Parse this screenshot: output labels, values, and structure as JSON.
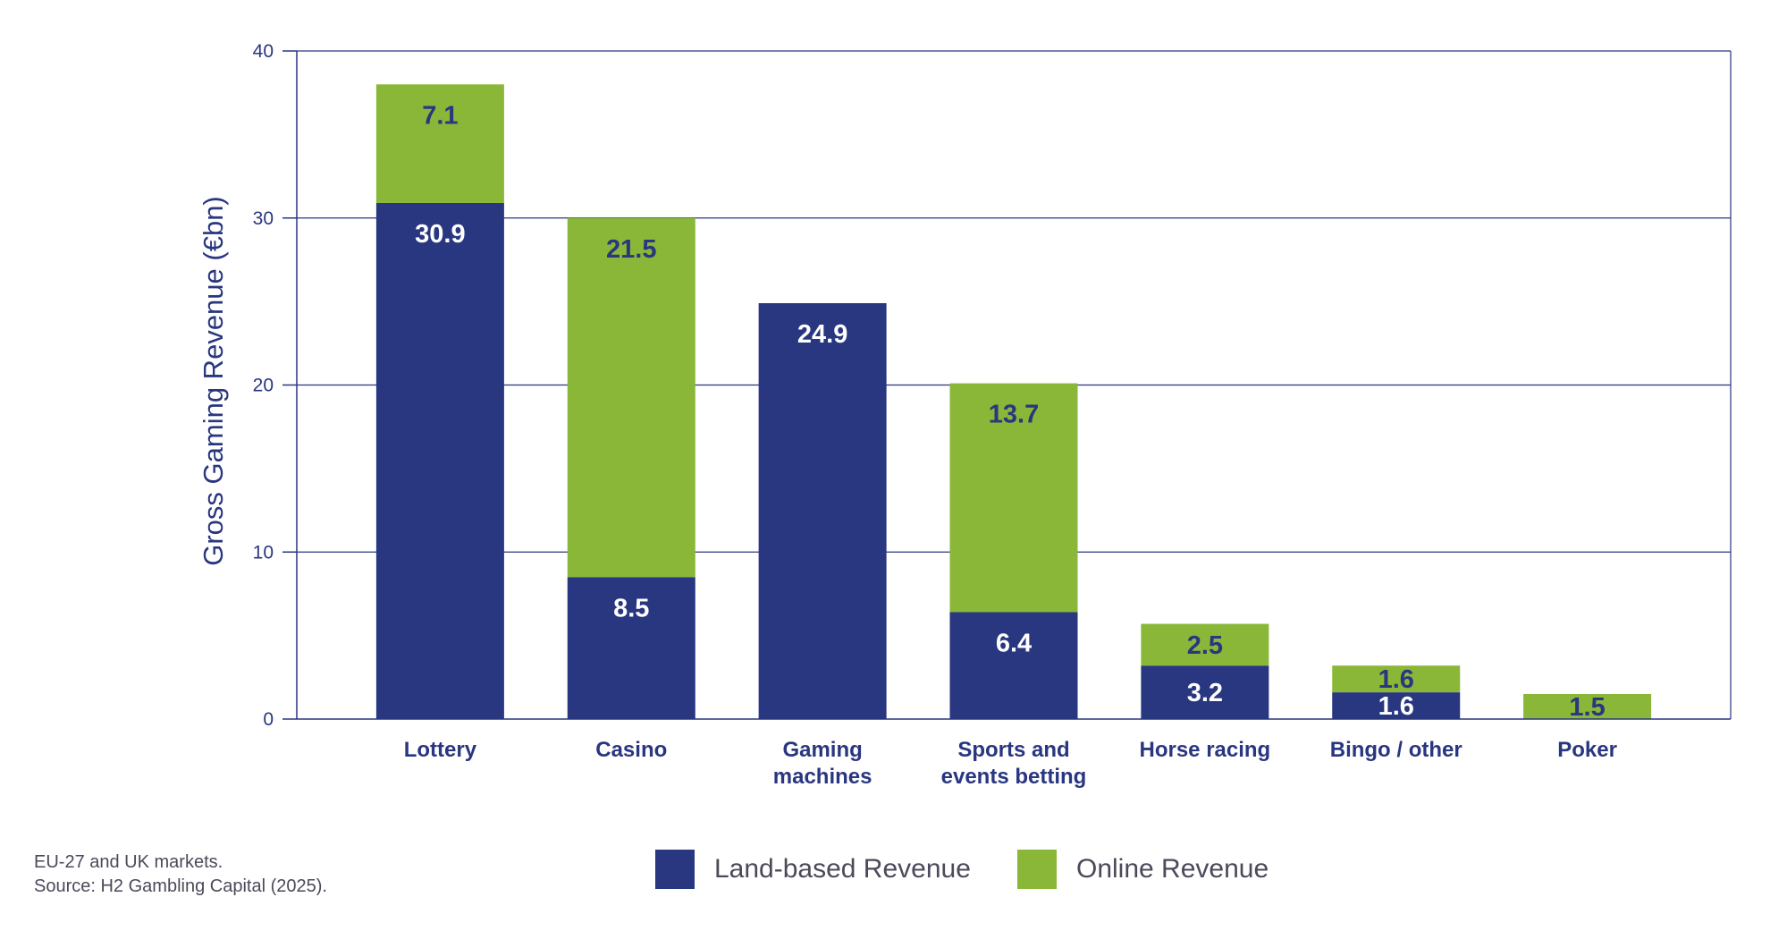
{
  "colors": {
    "land_based": "#293680",
    "online": "#8ab737",
    "axis": "#293680",
    "grid": "#293680"
  },
  "chart_data": {
    "type": "bar",
    "stacked": true,
    "categories": [
      [
        "Lottery"
      ],
      [
        "Casino"
      ],
      [
        "Gaming",
        "machines"
      ],
      [
        "Sports and",
        "events betting"
      ],
      [
        "Horse racing"
      ],
      [
        "Bingo / other"
      ],
      [
        "Poker"
      ]
    ],
    "series": [
      {
        "name": "Land-based Revenue",
        "values": [
          30.9,
          8.5,
          24.9,
          6.4,
          3.2,
          1.6,
          0
        ],
        "labels": [
          "30.9",
          "8.5",
          "24.9",
          "6.4",
          "3.2",
          "1.6",
          ""
        ]
      },
      {
        "name": "Online Revenue",
        "values": [
          7.1,
          21.5,
          0,
          13.7,
          2.5,
          1.6,
          1.5
        ],
        "labels": [
          "7.1",
          "21.5",
          "",
          "13.7",
          "2.5",
          "1.6",
          "1.5"
        ]
      }
    ],
    "ylabel": "Gross Gaming Revenue (€bn)",
    "ylim": [
      0,
      40
    ],
    "yticks": [
      0,
      10,
      20,
      30,
      40
    ],
    "grid": true,
    "legend_position": "bottom"
  },
  "notes": {
    "line1": "EU-27 and UK markets.",
    "line2": "Source: H2 Gambling Capital (2025)."
  },
  "legend": {
    "land_label": "Land-based Revenue",
    "online_label": "Online Revenue"
  }
}
